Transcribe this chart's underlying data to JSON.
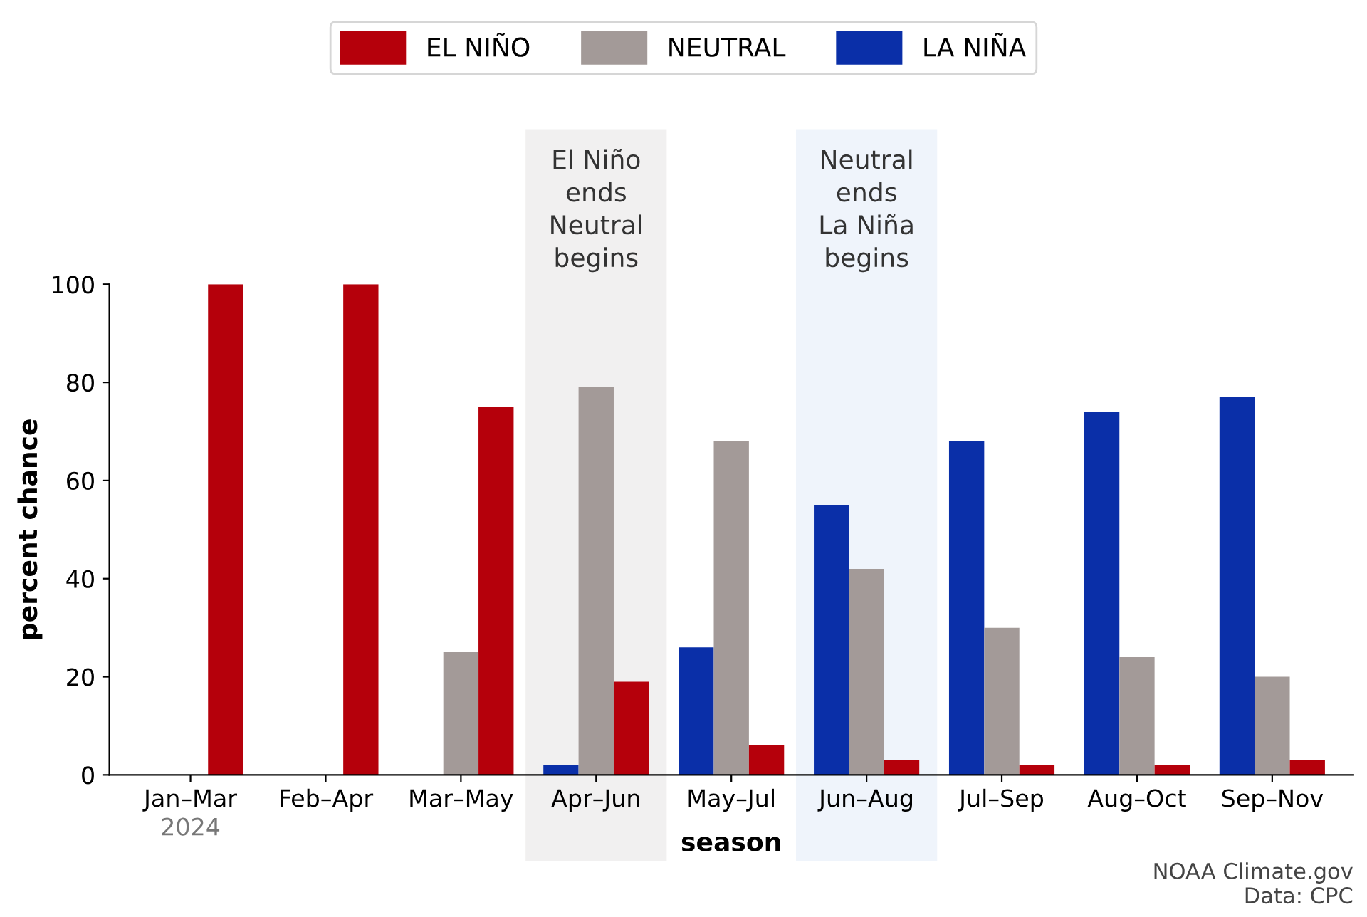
{
  "chart_data": {
    "type": "bar",
    "xlabel": "season",
    "ylabel": "percent chance",
    "categories": [
      "Jan–Mar",
      "Feb–Apr",
      "Mar–May",
      "Apr–Jun",
      "May–Jul",
      "Jun–Aug",
      "Jul–Sep",
      "Aug–Oct",
      "Sep–Nov"
    ],
    "series": [
      {
        "name": "LA NIÑA",
        "color": "#0a2fa8",
        "values": [
          0,
          0,
          0,
          2,
          26,
          55,
          68,
          74,
          77
        ]
      },
      {
        "name": "NEUTRAL",
        "color": "#a39a98",
        "values": [
          0,
          0,
          25,
          79,
          68,
          42,
          30,
          24,
          20
        ]
      },
      {
        "name": "EL NIÑO",
        "color": "#b5000b",
        "values": [
          100,
          100,
          75,
          19,
          6,
          3,
          2,
          2,
          3
        ]
      }
    ],
    "ylim": [
      0,
      100
    ],
    "yticks": [
      0,
      20,
      40,
      60,
      80,
      100
    ],
    "grid": false,
    "legend": "top",
    "bands": [
      {
        "axis": "x",
        "from": "Apr–Jun",
        "to": "Apr–Jun",
        "label": "El Niño\nends\nNeutral\nbegins",
        "color": "#b8b0ae"
      },
      {
        "axis": "x",
        "from": "Jun–Aug",
        "to": "Jun–Aug",
        "label": "Neutral\nends\nLa Niña\nbegins",
        "color": "#a9c4ee"
      }
    ],
    "annotations": [
      "2024",
      "NOAA Climate.gov\nData: CPC"
    ]
  }
}
